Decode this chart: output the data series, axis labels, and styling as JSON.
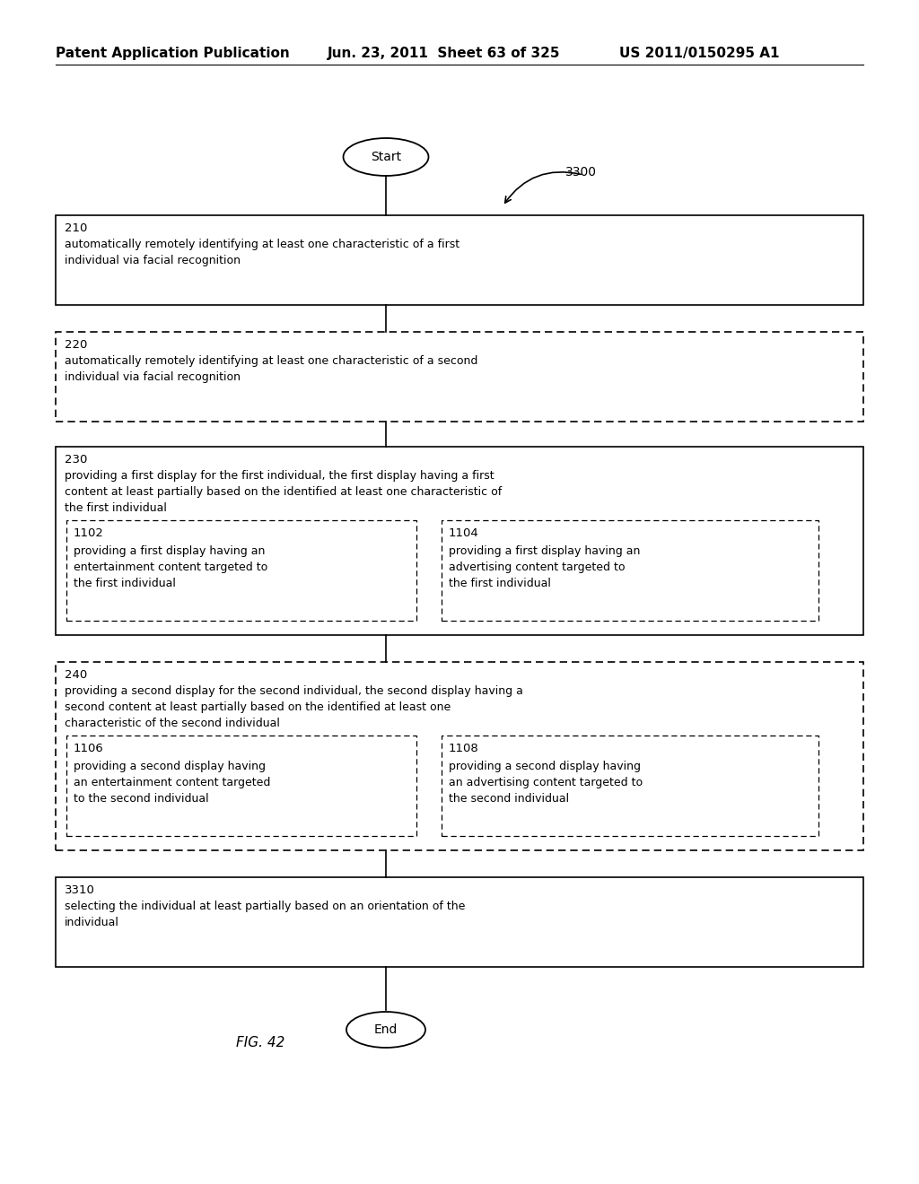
{
  "header_left": "Patent Application Publication",
  "header_center": "Jun. 23, 2011  Sheet 63 of 325",
  "header_right": "US 2011/0150295 A1",
  "fig_label": "FIG. 42",
  "diagram_label": "3300",
  "start_label": "Start",
  "end_label": "End",
  "background_color": "#ffffff",
  "text_color": "#000000",
  "font_size": 9.0,
  "label_font_size": 9.5,
  "header_font_size": 11,
  "page_width": 10.24,
  "page_height": 13.2,
  "dpi": 100
}
